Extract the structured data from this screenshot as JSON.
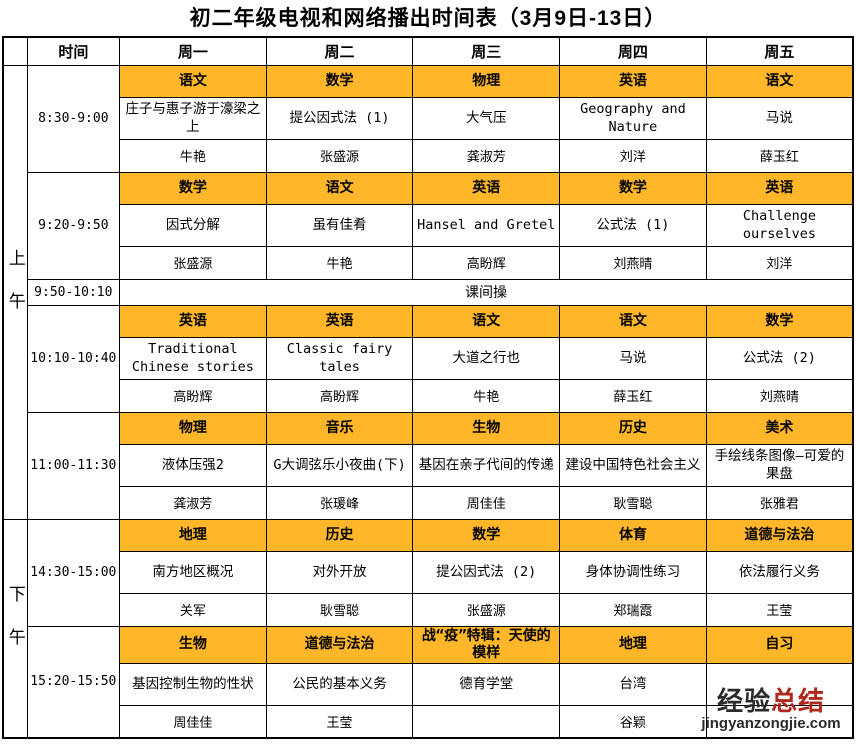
{
  "title": "初二年级电视和网络播出时间表（3月9日-13日）",
  "header": {
    "time_label": "时间",
    "days": [
      "周一",
      "周二",
      "周三",
      "周四",
      "周五"
    ]
  },
  "sections": [
    {
      "label": "上午",
      "blocks": [
        {
          "time": "8:30-9:00",
          "subjects": [
            "语文",
            "数学",
            "物理",
            "英语",
            "语文"
          ],
          "lessons": [
            "庄子与惠子游于濠梁之上",
            "提公因式法 (1)",
            "大气压",
            "Geography and Nature",
            "马说"
          ],
          "teachers": [
            "牛艳",
            "张盛源",
            "龚淑芳",
            "刘洋",
            "薛玉红"
          ]
        },
        {
          "time": "9:20-9:50",
          "subjects": [
            "数学",
            "语文",
            "英语",
            "数学",
            "英语"
          ],
          "lessons": [
            "因式分解",
            "虽有佳肴",
            "Hansel and Gretel",
            "公式法 (1)",
            "Challenge ourselves"
          ],
          "teachers": [
            "张盛源",
            "牛艳",
            "高盼辉",
            "刘燕晴",
            "刘洋"
          ]
        },
        {
          "time": "9:50-10:10",
          "span_text": "课间操"
        },
        {
          "time": "10:10-10:40",
          "subjects": [
            "英语",
            "英语",
            "语文",
            "语文",
            "数学"
          ],
          "lessons": [
            "Traditional Chinese stories",
            "Classic fairy tales",
            "大道之行也",
            "马说",
            "公式法 (2)"
          ],
          "teachers": [
            "高盼辉",
            "高盼辉",
            "牛艳",
            "薛玉红",
            "刘燕晴"
          ]
        },
        {
          "time": "11:00-11:30",
          "subjects": [
            "物理",
            "音乐",
            "生物",
            "历史",
            "美术"
          ],
          "lessons": [
            "液体压强2",
            "G大调弦乐小夜曲(下)",
            "基因在亲子代间的传递",
            "建设中国特色社会主义",
            "手绘线条图像—可爱的果盘"
          ],
          "teachers": [
            "龚淑芳",
            "张瑗峰",
            "周佳佳",
            "耿雪聪",
            "张雅君"
          ]
        }
      ]
    },
    {
      "label": "下午",
      "blocks": [
        {
          "time": "14:30-15:00",
          "subjects": [
            "地理",
            "历史",
            "数学",
            "体育",
            "道德与法治"
          ],
          "lessons": [
            "南方地区概况",
            "对外开放",
            "提公因式法 (2)",
            "身体协调性练习",
            "依法履行义务"
          ],
          "teachers": [
            "关军",
            "耿雪聪",
            "张盛源",
            "郑瑞霞",
            "王莹"
          ]
        },
        {
          "time": "15:20-15:50",
          "subjects": [
            "生物",
            "道德与法治",
            "战“疫”特辑：天使的模样",
            "地理",
            "自习"
          ],
          "lessons": [
            "基因控制生物的性状",
            "公民的基本义务",
            "德育学堂",
            "台湾",
            ""
          ],
          "teachers": [
            "周佳佳",
            "王莹",
            "",
            "谷颖",
            ""
          ]
        }
      ]
    }
  ],
  "watermark": {
    "brand_dark": "经验",
    "brand_red": "总结",
    "url": "jingyanzongjie.com"
  },
  "colors": {
    "subject_bg": "#FFB628",
    "watermark_red": "#B0271C",
    "border": "#000000"
  }
}
